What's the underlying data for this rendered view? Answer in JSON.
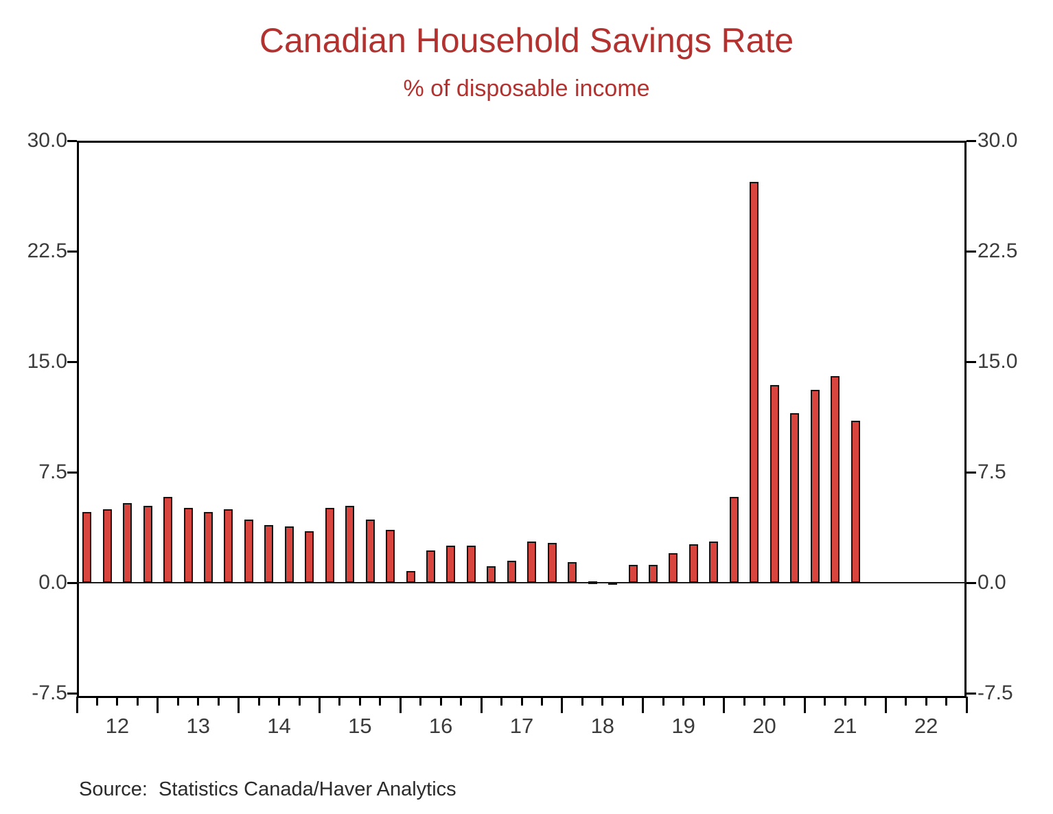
{
  "chart_data": {
    "type": "bar",
    "title": "Canadian Household Savings Rate",
    "subtitle": "% of disposable income",
    "source_note": "Source:  Statistics Canada/Haver Analytics",
    "title_color": "#b23230",
    "bar_fill_color": "#d8453e",
    "bar_outline_color": "#141414",
    "axis_color": "#000000",
    "label_color": "#3b3b3b",
    "grid": "off",
    "legend": "none",
    "y_axis_both_sides": true,
    "ylim": [
      -7.85,
      30.0
    ],
    "y_tick_labels": [
      "30.0",
      "22.5",
      "15.0",
      "7.5",
      "0.0",
      "-7.5"
    ],
    "x_year_labels": [
      "12",
      "13",
      "14",
      "15",
      "16",
      "17",
      "18",
      "19",
      "20",
      "21",
      "22"
    ],
    "quarters_per_year": 4,
    "points": [
      {
        "period": "2012 Q1",
        "value": 4.8
      },
      {
        "period": "2012 Q2",
        "value": 5.0
      },
      {
        "period": "2012 Q3",
        "value": 5.4
      },
      {
        "period": "2012 Q4",
        "value": 5.2
      },
      {
        "period": "2013 Q1",
        "value": 5.8
      },
      {
        "period": "2013 Q2",
        "value": 5.1
      },
      {
        "period": "2013 Q3",
        "value": 4.8
      },
      {
        "period": "2013 Q4",
        "value": 5.0
      },
      {
        "period": "2014 Q1",
        "value": 4.3
      },
      {
        "period": "2014 Q2",
        "value": 3.9
      },
      {
        "period": "2014 Q3",
        "value": 3.8
      },
      {
        "period": "2014 Q4",
        "value": 3.5
      },
      {
        "period": "2015 Q1",
        "value": 5.1
      },
      {
        "period": "2015 Q2",
        "value": 5.2
      },
      {
        "period": "2015 Q3",
        "value": 4.3
      },
      {
        "period": "2015 Q4",
        "value": 3.6
      },
      {
        "period": "2016 Q1",
        "value": 0.8
      },
      {
        "period": "2016 Q2",
        "value": 2.2
      },
      {
        "period": "2016 Q3",
        "value": 2.5
      },
      {
        "period": "2016 Q4",
        "value": 2.5
      },
      {
        "period": "2017 Q1",
        "value": 1.1
      },
      {
        "period": "2017 Q2",
        "value": 1.5
      },
      {
        "period": "2017 Q3",
        "value": 2.8
      },
      {
        "period": "2017 Q4",
        "value": 2.7
      },
      {
        "period": "2018 Q1",
        "value": 1.4
      },
      {
        "period": "2018 Q2",
        "value": 0.1
      },
      {
        "period": "2018 Q3",
        "value": -0.2
      },
      {
        "period": "2018 Q4",
        "value": 1.2
      },
      {
        "period": "2019 Q1",
        "value": 1.2
      },
      {
        "period": "2019 Q2",
        "value": 2.0
      },
      {
        "period": "2019 Q3",
        "value": 2.6
      },
      {
        "period": "2019 Q4",
        "value": 2.8
      },
      {
        "period": "2020 Q1",
        "value": 5.8
      },
      {
        "period": "2020 Q2",
        "value": 27.2
      },
      {
        "period": "2020 Q3",
        "value": 13.4
      },
      {
        "period": "2020 Q4",
        "value": 11.5
      },
      {
        "period": "2021 Q1",
        "value": 13.1
      },
      {
        "period": "2021 Q2",
        "value": 14.0
      },
      {
        "period": "2021 Q3",
        "value": 11.0
      }
    ]
  }
}
